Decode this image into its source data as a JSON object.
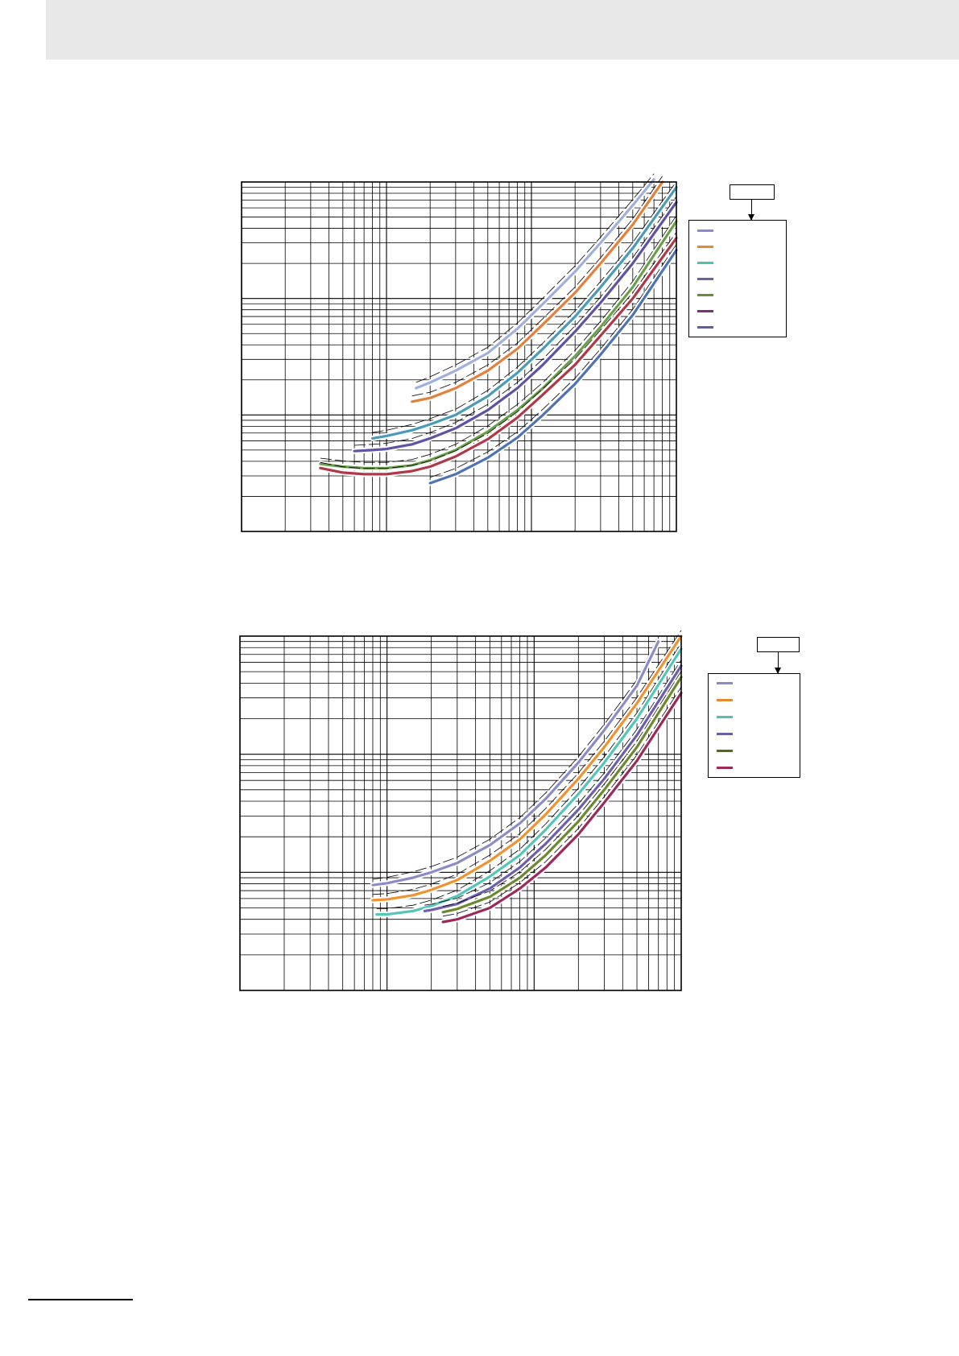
{
  "page": {
    "header_band_color": "#e8e8e8"
  },
  "chart_data": [
    {
      "type": "line",
      "title": "",
      "xlabel": "",
      "ylabel": "",
      "x_scale": "log",
      "y_scale": "log",
      "xlim": [
        0.1,
        100
      ],
      "ylim": [
        0.01,
        10
      ],
      "grid": true,
      "legend": {
        "placement": "right",
        "header_label": "",
        "entries": [
          {
            "name": "",
            "color": "#8b8cc7"
          },
          {
            "name": "",
            "color": "#e38b2e"
          },
          {
            "name": "",
            "color": "#4fc1b0"
          },
          {
            "name": "",
            "color": "#6b5fa8"
          },
          {
            "name": "",
            "color": "#6a8a3b"
          },
          {
            "name": "",
            "color": "#7e2e7e"
          },
          {
            "name": "",
            "color": "#5a5fa0"
          }
        ]
      },
      "series": [
        {
          "color": "#9fb0dd",
          "min_x": 1.6,
          "max_x": 100,
          "x": [
            1.6,
            2,
            3,
            5,
            8,
            12,
            20,
            30,
            50,
            70
          ],
          "y": [
            0.17,
            0.19,
            0.24,
            0.34,
            0.55,
            0.9,
            1.7,
            3.0,
            6.3,
            10.5
          ]
        },
        {
          "color": "#e5803a",
          "min_x": 1.5,
          "max_x": 100,
          "x": [
            1.5,
            2,
            3,
            5,
            8,
            12,
            20,
            30,
            50,
            80
          ],
          "y": [
            0.13,
            0.14,
            0.17,
            0.24,
            0.37,
            0.6,
            1.12,
            2.0,
            4.3,
            10.0
          ]
        },
        {
          "color": "#4a9bb7",
          "min_x": 0.8,
          "max_x": 100,
          "x": [
            0.8,
            1,
            1.5,
            2,
            3,
            5,
            8,
            12,
            20,
            30,
            50,
            100
          ],
          "y": [
            0.063,
            0.066,
            0.074,
            0.083,
            0.1,
            0.145,
            0.23,
            0.37,
            0.7,
            1.25,
            2.7,
            9.0
          ]
        },
        {
          "color": "#6152a3",
          "min_x": 0.6,
          "max_x": 100,
          "x": [
            0.6,
            0.8,
            1,
            1.5,
            2,
            3,
            5,
            8,
            12,
            20,
            30,
            50,
            100
          ],
          "y": [
            0.049,
            0.05,
            0.051,
            0.056,
            0.063,
            0.077,
            0.11,
            0.17,
            0.27,
            0.52,
            0.92,
            2.0,
            6.7
          ]
        },
        {
          "color": "#6aa049",
          "min_x": 0.35,
          "max_x": 100,
          "x": [
            0.35,
            0.5,
            0.7,
            1,
            1.5,
            2,
            3,
            5,
            8,
            12,
            20,
            30,
            50,
            100
          ],
          "y": [
            0.038,
            0.036,
            0.035,
            0.035,
            0.037,
            0.041,
            0.05,
            0.072,
            0.11,
            0.17,
            0.32,
            0.57,
            1.25,
            4.6
          ]
        },
        {
          "color": "#b03848",
          "min_x": 0.35,
          "max_x": 100,
          "x": [
            0.35,
            0.5,
            0.7,
            1,
            1.5,
            2,
            3,
            5,
            8,
            12,
            20,
            30,
            50,
            100
          ],
          "y": [
            0.035,
            0.032,
            0.031,
            0.031,
            0.033,
            0.036,
            0.044,
            0.062,
            0.095,
            0.15,
            0.27,
            0.48,
            1.0,
            3.3
          ]
        },
        {
          "color": "#4f74b3",
          "min_x": 2,
          "max_x": 100,
          "x": [
            2,
            3,
            5,
            8,
            12,
            20,
            30,
            50,
            100
          ],
          "y": [
            0.026,
            0.031,
            0.043,
            0.064,
            0.1,
            0.185,
            0.33,
            0.72,
            2.6
          ]
        }
      ]
    },
    {
      "type": "line",
      "title": "",
      "xlabel": "",
      "ylabel": "",
      "x_scale": "log",
      "y_scale": "log",
      "xlim": [
        0.1,
        100
      ],
      "ylim": [
        0.01,
        10
      ],
      "grid": true,
      "legend": {
        "placement": "right",
        "header_label": "",
        "entries": [
          {
            "name": "",
            "color": "#8b8cc7"
          },
          {
            "name": "",
            "color": "#e38b2e"
          },
          {
            "name": "",
            "color": "#4fc1b0"
          },
          {
            "name": "",
            "color": "#6b5fa8"
          },
          {
            "name": "",
            "color": "#4f6b1c"
          },
          {
            "name": "",
            "color": "#9b2a5a"
          }
        ]
      },
      "series": [
        {
          "color": "#8b8cc7",
          "min_x": 0.8,
          "max_x": 100,
          "x": [
            0.8,
            1,
            1.5,
            2,
            3,
            5,
            8,
            12,
            20,
            30,
            50,
            70
          ],
          "y": [
            0.078,
            0.081,
            0.09,
            0.1,
            0.12,
            0.17,
            0.26,
            0.42,
            0.85,
            1.6,
            3.8,
            9.0
          ]
        },
        {
          "color": "#f0922f",
          "min_x": 0.8,
          "max_x": 100,
          "x": [
            0.8,
            1,
            1.5,
            2,
            3,
            5,
            8,
            12,
            20,
            30,
            50,
            100
          ],
          "y": [
            0.058,
            0.059,
            0.064,
            0.071,
            0.086,
            0.125,
            0.19,
            0.31,
            0.62,
            1.15,
            2.7,
            10.0
          ]
        },
        {
          "color": "#55c6b6",
          "min_x": 0.85,
          "max_x": 100,
          "x": [
            0.85,
            1,
            1.5,
            2,
            3,
            5,
            8,
            12,
            20,
            30,
            50,
            100
          ],
          "y": [
            0.044,
            0.044,
            0.047,
            0.052,
            0.063,
            0.092,
            0.14,
            0.23,
            0.46,
            0.85,
            2.0,
            7.8
          ]
        },
        {
          "color": "#6d5fad",
          "min_x": 1.8,
          "max_x": 100,
          "x": [
            1.8,
            2,
            3,
            5,
            8,
            12,
            20,
            30,
            50,
            100
          ],
          "y": [
            0.047,
            0.048,
            0.054,
            0.073,
            0.11,
            0.175,
            0.34,
            0.62,
            1.45,
            5.6
          ]
        },
        {
          "color": "#6b8a2e",
          "min_x": 2.4,
          "max_x": 100,
          "x": [
            2.4,
            3,
            5,
            8,
            12,
            20,
            30,
            50,
            100
          ],
          "y": [
            0.046,
            0.049,
            0.062,
            0.09,
            0.14,
            0.27,
            0.5,
            1.15,
            4.5
          ]
        },
        {
          "color": "#9b2a5a",
          "min_x": 2.4,
          "max_x": 100,
          "x": [
            2.4,
            3,
            5,
            8,
            12,
            20,
            30,
            50,
            100
          ],
          "y": [
            0.038,
            0.04,
            0.05,
            0.073,
            0.11,
            0.21,
            0.39,
            0.88,
            3.3
          ]
        }
      ]
    }
  ]
}
